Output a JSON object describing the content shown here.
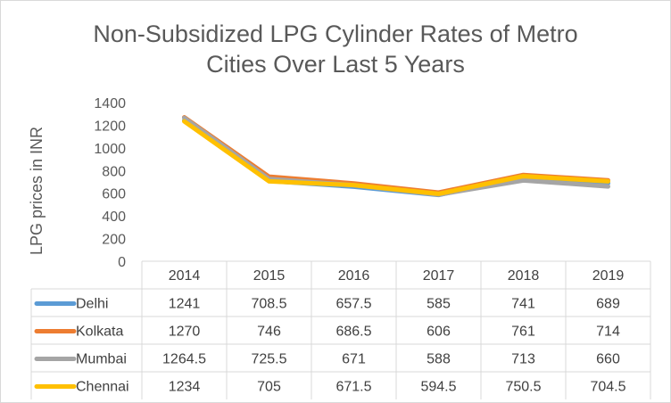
{
  "chart_data": {
    "type": "line",
    "title_line1": "Non-Subsidized LPG Cylinder Rates of Metro",
    "title_line2": "Cities Over Last 5 Years",
    "ylabel": "LPG prices in INR",
    "xlabel": "",
    "ylim": [
      0,
      1400
    ],
    "yticks": [
      0,
      200,
      400,
      600,
      800,
      1000,
      1200,
      1400
    ],
    "categories": [
      "2014",
      "2015",
      "2016",
      "2017",
      "2018",
      "2019"
    ],
    "grid": false,
    "legend": "data-table",
    "series": [
      {
        "name": "Delhi",
        "color": "#5b9bd5",
        "values": [
          1241,
          708.5,
          657.5,
          585,
          741,
          689
        ],
        "labels": [
          "1241",
          "708.5",
          "657.5",
          "585",
          "741",
          "689"
        ]
      },
      {
        "name": "Kolkata",
        "color": "#ed7d31",
        "values": [
          1270,
          746,
          686.5,
          606,
          761,
          714
        ],
        "labels": [
          "1270",
          "746",
          "686.5",
          "606",
          "761",
          "714"
        ]
      },
      {
        "name": "Mumbai",
        "color": "#a5a5a5",
        "values": [
          1264.5,
          725.5,
          671,
          588,
          713,
          660
        ],
        "labels": [
          "1264.5",
          "725.5",
          "671",
          "588",
          "713",
          "660"
        ]
      },
      {
        "name": "Chennai",
        "color": "#ffc000",
        "values": [
          1234,
          705,
          671.5,
          594.5,
          750.5,
          704.5
        ],
        "labels": [
          "1234",
          "705",
          "671.5",
          "594.5",
          "750.5",
          "704.5"
        ]
      }
    ]
  }
}
